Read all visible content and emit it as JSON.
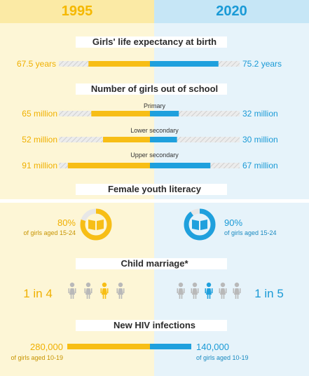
{
  "years": {
    "left": "1995",
    "right": "2020"
  },
  "colors": {
    "left": "#f7be16",
    "right": "#1fa0dd",
    "hatch": "#d4d4d4"
  },
  "chart_data": {
    "type": "bar",
    "sections": [
      {
        "title": "Girls' life expectancy at birth",
        "rows": [
          {
            "category": "",
            "left_value": 67.5,
            "right_value": 75.2,
            "left_label": "67.5 years",
            "right_label": "75.2 years"
          }
        ]
      },
      {
        "title": "Number of girls out of school",
        "rows": [
          {
            "category": "Primary",
            "left_value": 65,
            "right_value": 32,
            "left_label": "65 million",
            "right_label": "32 million"
          },
          {
            "category": "Lower secondary",
            "left_value": 52,
            "right_value": 30,
            "left_label": "52 million",
            "right_label": "30 million"
          },
          {
            "category": "Upper secondary",
            "left_value": 91,
            "right_value": 67,
            "left_label": "91 million",
            "right_label": "67 million"
          }
        ]
      },
      {
        "title": "Female youth literacy",
        "left_value": 80,
        "right_value": 90,
        "left_label": "80%",
        "right_label": "90%",
        "left_sub": "of girls aged 15-24",
        "right_sub": "of girls aged 15-24"
      },
      {
        "title": "Child marriage*",
        "left_label": "1 in 4",
        "right_label": "1 in 5",
        "left_of": 4,
        "right_of": 5
      },
      {
        "title": "New HIV infections",
        "left_value": 280000,
        "right_value": 140000,
        "left_label": "280,000",
        "right_label": "140,000",
        "left_sub": "of girls aged 10-19",
        "right_sub": "of girls aged 10-19"
      }
    ]
  }
}
